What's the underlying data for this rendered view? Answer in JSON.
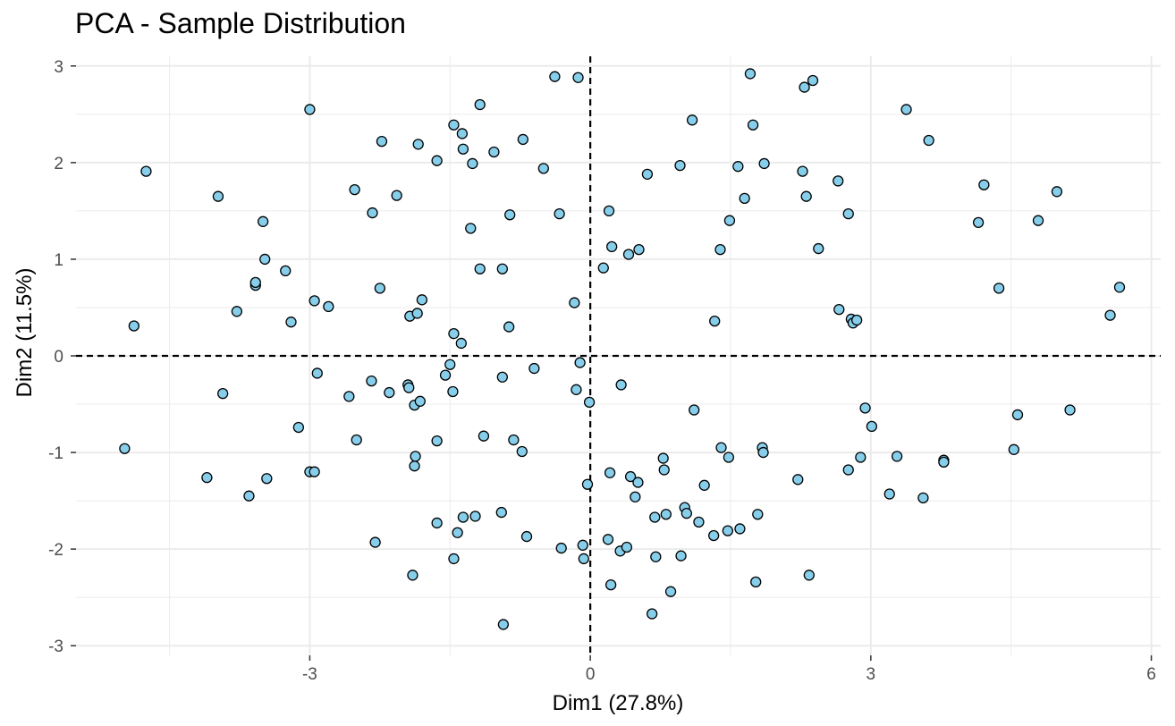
{
  "chart_data": {
    "type": "scatter",
    "title": "PCA - Sample Distribution",
    "xlabel": "Dim1 (27.8%)",
    "ylabel": "Dim2 (11.5%)",
    "xlim": [
      -5.5,
      6.1
    ],
    "ylim": [
      -3.1,
      3.1
    ],
    "x_ticks": [
      -3,
      0,
      3,
      6
    ],
    "y_ticks": [
      -3,
      -2,
      -1,
      0,
      1,
      2,
      3
    ],
    "reference_lines": {
      "x": 0,
      "y": 0,
      "style": "dashed"
    },
    "grid": true,
    "legend": "none",
    "point_fill": "#87ceeb",
    "point_stroke": "#000000",
    "grid_color": "#ebebeb",
    "points": [
      [
        -4.75,
        1.91
      ],
      [
        -4.88,
        0.31
      ],
      [
        -4.98,
        -0.96
      ],
      [
        -4.1,
        -1.26
      ],
      [
        -3.98,
        1.65
      ],
      [
        -3.93,
        -0.39
      ],
      [
        -3.78,
        0.46
      ],
      [
        -3.65,
        -1.45
      ],
      [
        -3.58,
        0.73
      ],
      [
        -3.58,
        0.76
      ],
      [
        -3.5,
        1.39
      ],
      [
        -3.48,
        1.0
      ],
      [
        -3.46,
        -1.27
      ],
      [
        -3.26,
        0.88
      ],
      [
        -3.2,
        0.35
      ],
      [
        -3.12,
        -0.74
      ],
      [
        -3.0,
        2.55
      ],
      [
        -3.0,
        -1.2
      ],
      [
        -2.95,
        -1.2
      ],
      [
        -2.95,
        0.57
      ],
      [
        -2.92,
        -0.18
      ],
      [
        -2.8,
        0.51
      ],
      [
        -2.58,
        -0.42
      ],
      [
        -2.52,
        1.72
      ],
      [
        -2.5,
        -0.87
      ],
      [
        -2.34,
        -0.26
      ],
      [
        -2.33,
        1.48
      ],
      [
        -2.3,
        -1.93
      ],
      [
        -2.25,
        0.7
      ],
      [
        -2.23,
        2.22
      ],
      [
        -2.15,
        -0.38
      ],
      [
        -2.07,
        1.66
      ],
      [
        -1.95,
        -0.3
      ],
      [
        -1.94,
        -0.33
      ],
      [
        -1.93,
        0.41
      ],
      [
        -1.9,
        -2.27
      ],
      [
        -1.88,
        -0.51
      ],
      [
        -1.88,
        -1.14
      ],
      [
        -1.87,
        -1.04
      ],
      [
        -1.85,
        0.44
      ],
      [
        -1.84,
        2.19
      ],
      [
        -1.82,
        -0.47
      ],
      [
        -1.8,
        0.58
      ],
      [
        -1.64,
        2.02
      ],
      [
        -1.64,
        -0.88
      ],
      [
        -1.64,
        -1.73
      ],
      [
        -1.55,
        -0.2
      ],
      [
        -1.5,
        -0.09
      ],
      [
        -1.47,
        -0.37
      ],
      [
        -1.46,
        -2.1
      ],
      [
        -1.46,
        0.23
      ],
      [
        -1.46,
        2.39
      ],
      [
        -1.42,
        -1.83
      ],
      [
        -1.38,
        0.13
      ],
      [
        -1.37,
        2.3
      ],
      [
        -1.36,
        2.14
      ],
      [
        -1.36,
        -1.67
      ],
      [
        -1.28,
        1.32
      ],
      [
        -1.26,
        1.99
      ],
      [
        -1.23,
        -1.66
      ],
      [
        -1.18,
        2.6
      ],
      [
        -1.18,
        0.9
      ],
      [
        -1.14,
        -0.83
      ],
      [
        -1.03,
        2.11
      ],
      [
        -0.95,
        -1.62
      ],
      [
        -0.94,
        0.9
      ],
      [
        -0.94,
        -0.22
      ],
      [
        -0.93,
        -2.78
      ],
      [
        -0.87,
        0.3
      ],
      [
        -0.86,
        1.46
      ],
      [
        -0.82,
        -0.87
      ],
      [
        -0.73,
        -0.99
      ],
      [
        -0.72,
        2.24
      ],
      [
        -0.68,
        -1.87
      ],
      [
        -0.6,
        -0.13
      ],
      [
        -0.5,
        1.94
      ],
      [
        -0.38,
        2.89
      ],
      [
        -0.33,
        1.47
      ],
      [
        -0.31,
        -1.99
      ],
      [
        -0.17,
        0.55
      ],
      [
        -0.15,
        -0.35
      ],
      [
        -0.13,
        2.88
      ],
      [
        -0.11,
        -0.07
      ],
      [
        -0.08,
        -1.96
      ],
      [
        -0.07,
        -2.1
      ],
      [
        -0.03,
        -1.33
      ],
      [
        -0.01,
        -0.48
      ],
      [
        0.14,
        0.91
      ],
      [
        0.19,
        -1.9
      ],
      [
        0.2,
        1.5
      ],
      [
        0.21,
        -1.21
      ],
      [
        0.22,
        -2.37
      ],
      [
        0.23,
        1.13
      ],
      [
        0.33,
        -0.3
      ],
      [
        0.32,
        -2.02
      ],
      [
        0.39,
        -1.98
      ],
      [
        0.41,
        1.05
      ],
      [
        0.43,
        -1.25
      ],
      [
        0.48,
        -1.46
      ],
      [
        0.51,
        -1.31
      ],
      [
        0.52,
        1.1
      ],
      [
        0.61,
        1.88
      ],
      [
        0.66,
        -2.67
      ],
      [
        0.69,
        -1.67
      ],
      [
        0.7,
        -2.08
      ],
      [
        0.78,
        -1.06
      ],
      [
        0.79,
        -1.18
      ],
      [
        0.81,
        -1.64
      ],
      [
        0.86,
        -2.44
      ],
      [
        0.96,
        1.97
      ],
      [
        0.97,
        -2.07
      ],
      [
        1.01,
        -1.57
      ],
      [
        1.03,
        -1.63
      ],
      [
        1.09,
        2.44
      ],
      [
        1.11,
        -0.56
      ],
      [
        1.16,
        -1.72
      ],
      [
        1.22,
        -1.34
      ],
      [
        1.32,
        -1.86
      ],
      [
        1.33,
        0.36
      ],
      [
        1.39,
        1.1
      ],
      [
        1.4,
        -0.95
      ],
      [
        1.47,
        -1.81
      ],
      [
        1.48,
        -1.05
      ],
      [
        1.49,
        1.4
      ],
      [
        1.58,
        1.96
      ],
      [
        1.6,
        -1.79
      ],
      [
        1.65,
        1.63
      ],
      [
        1.71,
        2.92
      ],
      [
        1.74,
        2.39
      ],
      [
        1.77,
        -2.34
      ],
      [
        1.79,
        -1.64
      ],
      [
        1.84,
        -0.95
      ],
      [
        1.85,
        -1.0
      ],
      [
        1.86,
        1.99
      ],
      [
        2.22,
        -1.28
      ],
      [
        2.27,
        1.91
      ],
      [
        2.29,
        2.78
      ],
      [
        2.31,
        1.65
      ],
      [
        2.34,
        -2.27
      ],
      [
        2.38,
        2.85
      ],
      [
        2.44,
        1.11
      ],
      [
        2.65,
        1.81
      ],
      [
        2.66,
        0.48
      ],
      [
        2.76,
        1.47
      ],
      [
        2.76,
        -1.18
      ],
      [
        2.79,
        0.38
      ],
      [
        2.81,
        0.34
      ],
      [
        2.85,
        0.37
      ],
      [
        2.89,
        -1.05
      ],
      [
        2.94,
        -0.54
      ],
      [
        3.01,
        -0.73
      ],
      [
        3.2,
        -1.43
      ],
      [
        3.28,
        -1.04
      ],
      [
        3.38,
        2.55
      ],
      [
        3.56,
        -1.47
      ],
      [
        3.62,
        2.23
      ],
      [
        3.78,
        -1.08
      ],
      [
        3.78,
        -1.1
      ],
      [
        4.15,
        1.38
      ],
      [
        4.21,
        1.77
      ],
      [
        4.37,
        0.7
      ],
      [
        4.53,
        -0.97
      ],
      [
        4.57,
        -0.61
      ],
      [
        4.79,
        1.4
      ],
      [
        4.99,
        1.7
      ],
      [
        5.13,
        -0.56
      ],
      [
        5.56,
        0.42
      ],
      [
        5.66,
        0.71
      ]
    ]
  }
}
